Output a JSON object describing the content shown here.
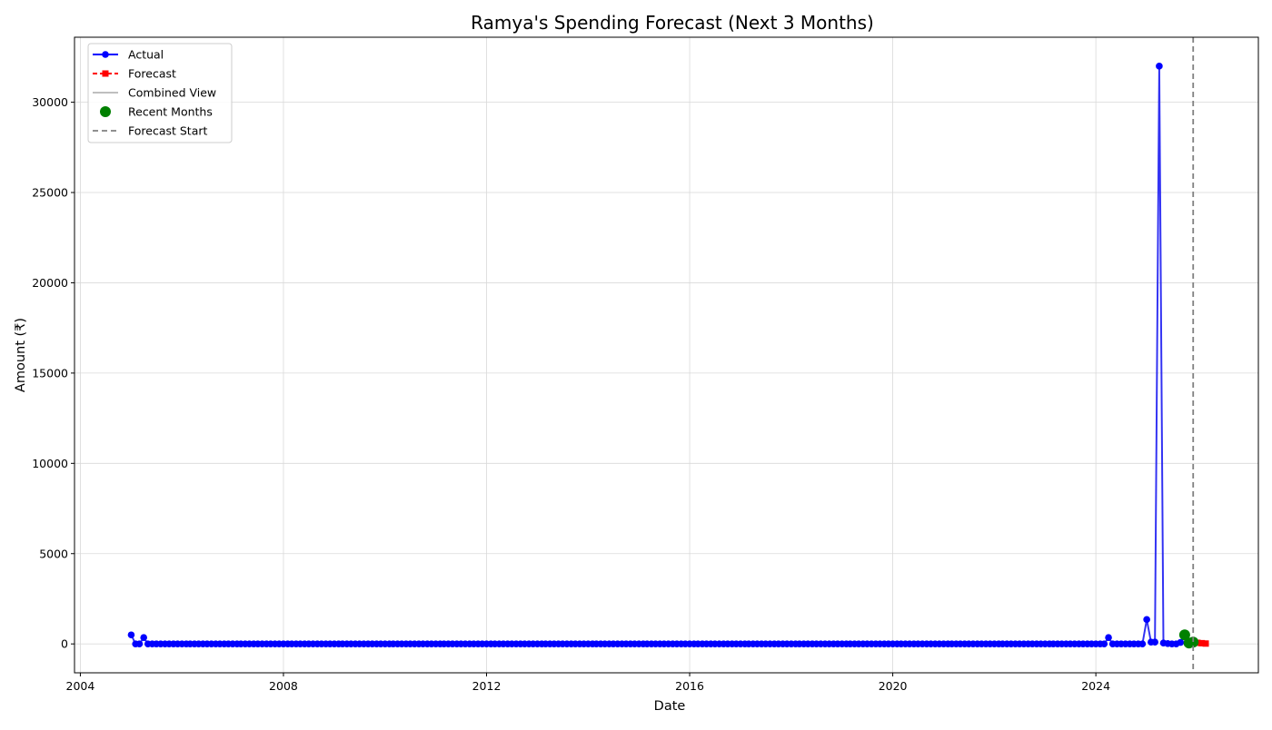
{
  "chart_data": {
    "type": "line",
    "title": "Ramya's Spending Forecast (Next 3 Months)",
    "xlabel": "Date",
    "ylabel": "Amount (₹)",
    "x_type": "date",
    "xlim": [
      "2003-11-20",
      "2027-03-15"
    ],
    "ylim": [
      -1600,
      33600
    ],
    "xticks": [
      "2004-01-01",
      "2008-01-01",
      "2012-01-01",
      "2016-01-01",
      "2020-01-01",
      "2024-01-01"
    ],
    "xtick_labels": [
      "2004",
      "2008",
      "2012",
      "2016",
      "2020",
      "2024"
    ],
    "yticks": [
      0,
      5000,
      10000,
      15000,
      20000,
      25000,
      30000
    ],
    "ytick_labels": [
      "0",
      "5000",
      "10000",
      "15000",
      "20000",
      "25000",
      "30000"
    ],
    "grid": true,
    "legend_position": "top-left",
    "series": [
      {
        "name": "Actual",
        "color": "#0000ff",
        "marker": "circle",
        "points": [
          [
            "2005-01-01",
            500
          ],
          [
            "2005-02-01",
            0
          ],
          [
            "2005-03-01",
            0
          ],
          [
            "2005-04-01",
            350
          ],
          [
            "2024-03-01",
            0
          ],
          [
            "2024-04-01",
            350
          ],
          [
            "2024-05-01",
            0
          ],
          [
            "2025-01-01",
            1350
          ],
          [
            "2025-02-01",
            100
          ],
          [
            "2025-03-01",
            100
          ],
          [
            "2025-04-01",
            32000
          ],
          [
            "2025-05-01",
            50
          ],
          [
            "2025-06-01",
            20
          ],
          [
            "2025-07-01",
            0
          ],
          [
            "2025-08-01",
            0
          ],
          [
            "2025-09-01",
            80
          ],
          [
            "2025-10-01",
            500
          ],
          [
            "2025-11-01",
            50
          ],
          [
            "2025-12-01",
            100
          ]
        ],
        "fill_zero_monthly_from": "2005-05-01",
        "fill_zero_monthly_to": "2024-02-01",
        "fill_zero_monthly_from_2": "2024-06-01",
        "fill_zero_monthly_to_2": "2024-12-01"
      },
      {
        "name": "Forecast",
        "color": "#ff0000",
        "marker": "square",
        "points": [
          [
            "2026-01-01",
            60
          ],
          [
            "2026-02-01",
            40
          ],
          [
            "2026-03-01",
            20
          ]
        ]
      },
      {
        "name": "Combined View",
        "color": "#aaaaaa",
        "marker": "none"
      },
      {
        "name": "Recent Months",
        "color": "#008000",
        "marker": "circle-large",
        "points": [
          [
            "2025-10-01",
            500
          ],
          [
            "2025-11-01",
            50
          ],
          [
            "2025-12-01",
            100
          ]
        ]
      },
      {
        "name": "Forecast Start",
        "color": "#808080",
        "marker": "none",
        "x": "2025-12-01"
      }
    ]
  }
}
